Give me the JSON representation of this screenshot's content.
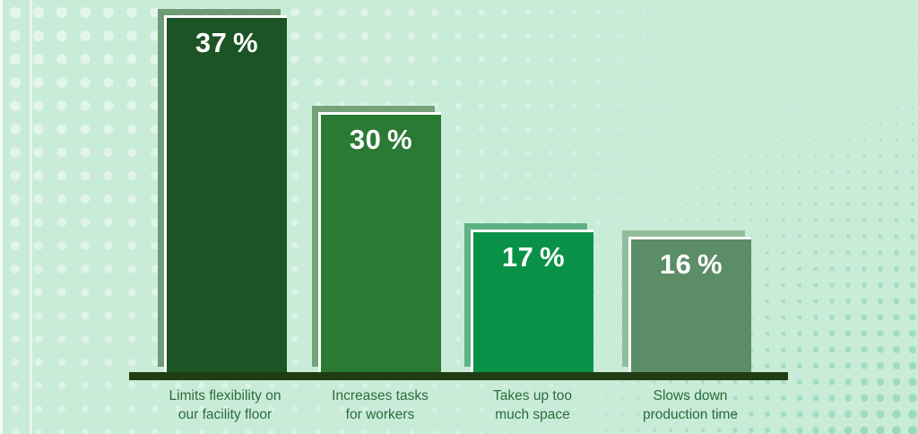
{
  "chart_data": {
    "type": "bar",
    "title": "",
    "xlabel": "",
    "ylabel": "",
    "ylim": [
      0,
      40
    ],
    "grid": false,
    "legend": false,
    "categories": [
      "Limits flexibility on our facility floor",
      "Increases tasks for workers",
      "Takes up too much space",
      "Slows down production time"
    ],
    "values": [
      37,
      30,
      17,
      16
    ],
    "bars": [
      {
        "value": 37,
        "value_label": "37 %",
        "label_line1": "Limits flexibility on",
        "label_line2": "our facility floor",
        "fill": "#1d5426",
        "echo": "#6f9b76"
      },
      {
        "value": 30,
        "value_label": "30 %",
        "label_line1": "Increases tasks",
        "label_line2": "for workers",
        "fill": "#2a7a33",
        "echo": "#74a37a"
      },
      {
        "value": 17,
        "value_label": "17 %",
        "label_line1": "Takes up too",
        "label_line2": "much space",
        "fill": "#0a9148",
        "echo": "#5fb183"
      },
      {
        "value": 16,
        "value_label": "16 %",
        "label_line1": "Slows down",
        "label_line2": "production time",
        "fill": "#5b8d66",
        "echo": "#92bd9a"
      }
    ],
    "colors": {
      "background": "#c9ecd9",
      "dot_light": "#ffffff",
      "dot_dark": "#8fd4b4",
      "axis": "#203c12",
      "category_text": "#2e6b3c",
      "value_text": "#ffffff"
    }
  }
}
